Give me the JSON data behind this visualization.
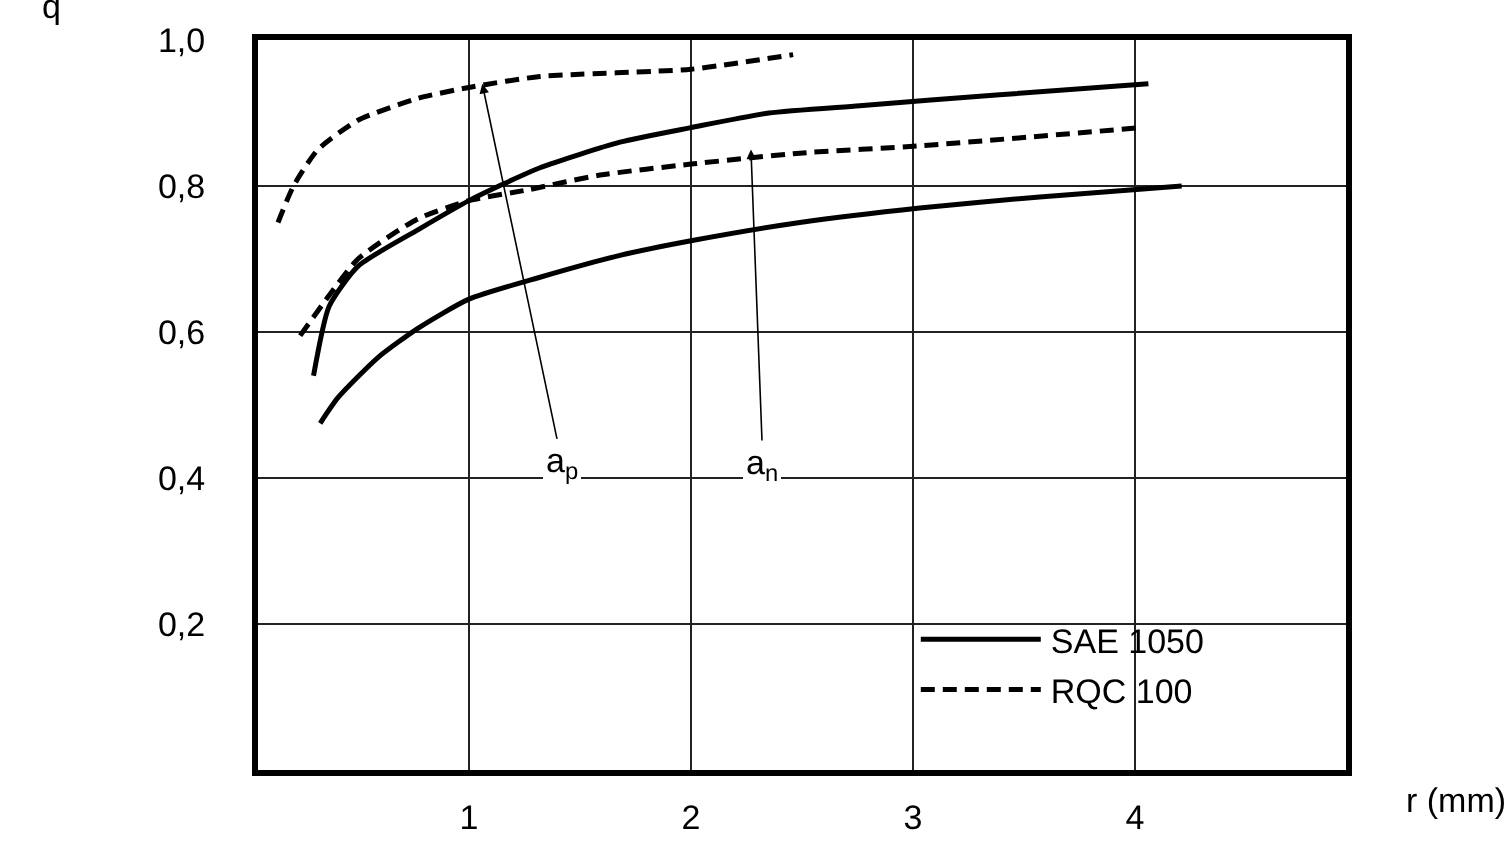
{
  "chart_data": {
    "type": "line",
    "xlabel": "r (mm)",
    "ylabel": "q",
    "xlim": [
      0.05,
      4.95
    ],
    "xticks": [
      1,
      2,
      3,
      4
    ],
    "ylim": [
      0,
      1
    ],
    "yticks": [
      {
        "value": 0.2,
        "label": "0,2"
      },
      {
        "value": 0.4,
        "label": "0,4"
      },
      {
        "value": 0.6,
        "label": "0,6"
      },
      {
        "value": 0.8,
        "label": "0,8"
      },
      {
        "value": 1.0,
        "label": "1,0"
      }
    ],
    "grid": true,
    "legend": "bottom right",
    "marker": "none",
    "series": [
      {
        "name": "SAE 1050",
        "color": "#000000",
        "line_style": "solid",
        "x": [
          0.3,
          0.37,
          0.5,
          0.77,
          1.0,
          1.32,
          1.68,
          2.0,
          2.35,
          2.76,
          3.39,
          4.06
        ],
        "values": [
          0.54,
          0.635,
          0.69,
          0.74,
          0.78,
          0.825,
          0.86,
          0.88,
          0.9,
          0.91,
          0.925,
          0.94
        ]
      },
      {
        "color": "#000000",
        "line_style": "solid",
        "x": [
          0.33,
          0.41,
          0.59,
          0.77,
          1.0,
          1.32,
          1.68,
          2.0,
          2.49,
          3.03,
          3.57,
          4.21
        ],
        "values": [
          0.475,
          0.51,
          0.565,
          0.605,
          0.645,
          0.675,
          0.705,
          0.725,
          0.75,
          0.77,
          0.785,
          0.8
        ]
      },
      {
        "name": "RQC 100",
        "color": "#000000",
        "line_style": "dashed",
        "x": [
          0.14,
          0.21,
          0.32,
          0.5,
          0.77,
          1.0,
          1.32,
          2.0,
          2.46
        ],
        "values": [
          0.75,
          0.8,
          0.85,
          0.89,
          0.92,
          0.935,
          0.95,
          0.96,
          0.98
        ]
      },
      {
        "color": "#000000",
        "line_style": "dashed",
        "x": [
          0.24,
          0.37,
          0.5,
          0.77,
          1.0,
          1.27,
          1.59,
          2.0,
          2.49,
          3.03,
          4.03
        ],
        "values": [
          0.595,
          0.65,
          0.7,
          0.755,
          0.78,
          0.795,
          0.815,
          0.83,
          0.845,
          0.855,
          0.88
        ]
      }
    ],
    "annotations": [
      {
        "text": "a$_{p}$",
        "x": 1.06,
        "y": 0.94
      },
      {
        "text": "a$_{n}$",
        "x": 2.27,
        "y": 0.85
      }
    ]
  }
}
